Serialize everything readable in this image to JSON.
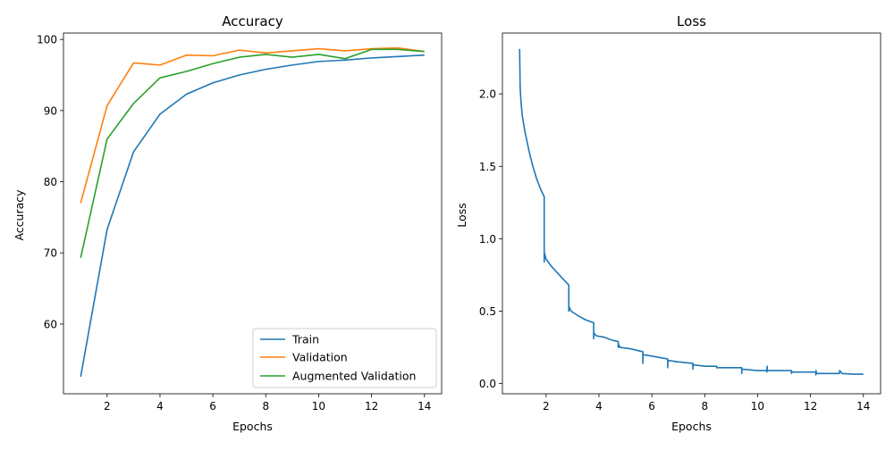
{
  "chart_data": [
    {
      "type": "line",
      "title": "Accuracy",
      "xlabel": "Epochs",
      "ylabel": "Accuracy",
      "xlim": [
        0.35,
        14.65
      ],
      "ylim": [
        50.2,
        100.9
      ],
      "xticks": [
        2,
        4,
        6,
        8,
        10,
        12,
        14
      ],
      "yticks": [
        60,
        70,
        80,
        90,
        100
      ],
      "grid": false,
      "legend_position": "lower-right",
      "x": [
        1,
        2,
        3,
        4,
        5,
        6,
        7,
        8,
        9,
        10,
        11,
        12,
        13,
        14
      ],
      "series": [
        {
          "name": "Train",
          "color": "#1f77b4",
          "values": [
            52.6,
            73.3,
            84.2,
            89.5,
            92.3,
            93.9,
            95.0,
            95.8,
            96.4,
            96.9,
            97.1,
            97.4,
            97.6,
            97.8
          ]
        },
        {
          "name": "Validation",
          "color": "#ff7f0e",
          "values": [
            77.0,
            90.7,
            96.7,
            96.4,
            97.8,
            97.7,
            98.5,
            98.1,
            98.4,
            98.7,
            98.4,
            98.7,
            98.8,
            98.3
          ]
        },
        {
          "name": "Augmented Validation",
          "color": "#2ca02c",
          "values": [
            69.3,
            86.0,
            91.0,
            94.6,
            95.5,
            96.6,
            97.5,
            97.9,
            97.5,
            97.9,
            97.3,
            98.6,
            98.6,
            98.3
          ]
        }
      ]
    },
    {
      "type": "line",
      "title": "Loss",
      "xlabel": "Epochs",
      "ylabel": "Loss",
      "xlim": [
        0.35,
        14.65
      ],
      "ylim": [
        -0.07,
        2.42
      ],
      "xticks": [
        2,
        4,
        6,
        8,
        10,
        12,
        14
      ],
      "yticks": [
        0.0,
        0.5,
        1.0,
        1.5,
        2.0
      ],
      "grid": false,
      "series": [
        {
          "color": "#1f77b4",
          "points": [
            [
              1.0,
              2.31
            ],
            [
              1.02,
              2.05
            ],
            [
              1.05,
              1.95
            ],
            [
              1.1,
              1.85
            ],
            [
              1.2,
              1.74
            ],
            [
              1.35,
              1.61
            ],
            [
              1.5,
              1.5
            ],
            [
              1.65,
              1.41
            ],
            [
              1.8,
              1.34
            ],
            [
              1.93,
              1.29
            ],
            [
              1.93,
              0.84
            ],
            [
              1.94,
              0.9
            ],
            [
              2.0,
              0.86
            ],
            [
              2.2,
              0.81
            ],
            [
              2.5,
              0.75
            ],
            [
              2.86,
              0.68
            ],
            [
              2.86,
              0.5
            ],
            [
              2.87,
              0.53
            ],
            [
              2.95,
              0.5
            ],
            [
              3.2,
              0.47
            ],
            [
              3.5,
              0.44
            ],
            [
              3.8,
              0.42
            ],
            [
              3.8,
              0.31
            ],
            [
              3.81,
              0.35
            ],
            [
              3.9,
              0.33
            ],
            [
              4.2,
              0.32
            ],
            [
              4.5,
              0.3
            ],
            [
              4.73,
              0.29
            ],
            [
              4.73,
              0.25
            ],
            [
              4.74,
              0.27
            ],
            [
              4.8,
              0.25
            ],
            [
              5.2,
              0.24
            ],
            [
              5.66,
              0.22
            ],
            [
              5.66,
              0.14
            ],
            [
              5.67,
              0.2
            ],
            [
              6.0,
              0.19
            ],
            [
              6.6,
              0.17
            ],
            [
              6.6,
              0.11
            ],
            [
              6.61,
              0.16
            ],
            [
              7.0,
              0.15
            ],
            [
              7.55,
              0.14
            ],
            [
              7.55,
              0.1
            ],
            [
              7.56,
              0.13
            ],
            [
              8.0,
              0.12
            ],
            [
              8.45,
              0.12
            ],
            [
              8.45,
              0.11
            ],
            [
              8.46,
              0.11
            ],
            [
              9.0,
              0.11
            ],
            [
              9.4,
              0.11
            ],
            [
              9.4,
              0.07
            ],
            [
              9.41,
              0.1
            ],
            [
              10.0,
              0.09
            ],
            [
              10.35,
              0.09
            ],
            [
              10.35,
              0.08
            ],
            [
              10.36,
              0.12
            ],
            [
              10.37,
              0.09
            ],
            [
              11.0,
              0.09
            ],
            [
              11.28,
              0.09
            ],
            [
              11.28,
              0.07
            ],
            [
              11.29,
              0.08
            ],
            [
              12.0,
              0.08
            ],
            [
              12.2,
              0.08
            ],
            [
              12.2,
              0.06
            ],
            [
              12.21,
              0.09
            ],
            [
              12.22,
              0.07
            ],
            [
              13.0,
              0.07
            ],
            [
              13.1,
              0.07
            ],
            [
              13.1,
              0.09
            ],
            [
              13.2,
              0.07
            ],
            [
              13.6,
              0.065
            ],
            [
              14.0,
              0.065
            ]
          ]
        }
      ]
    }
  ]
}
